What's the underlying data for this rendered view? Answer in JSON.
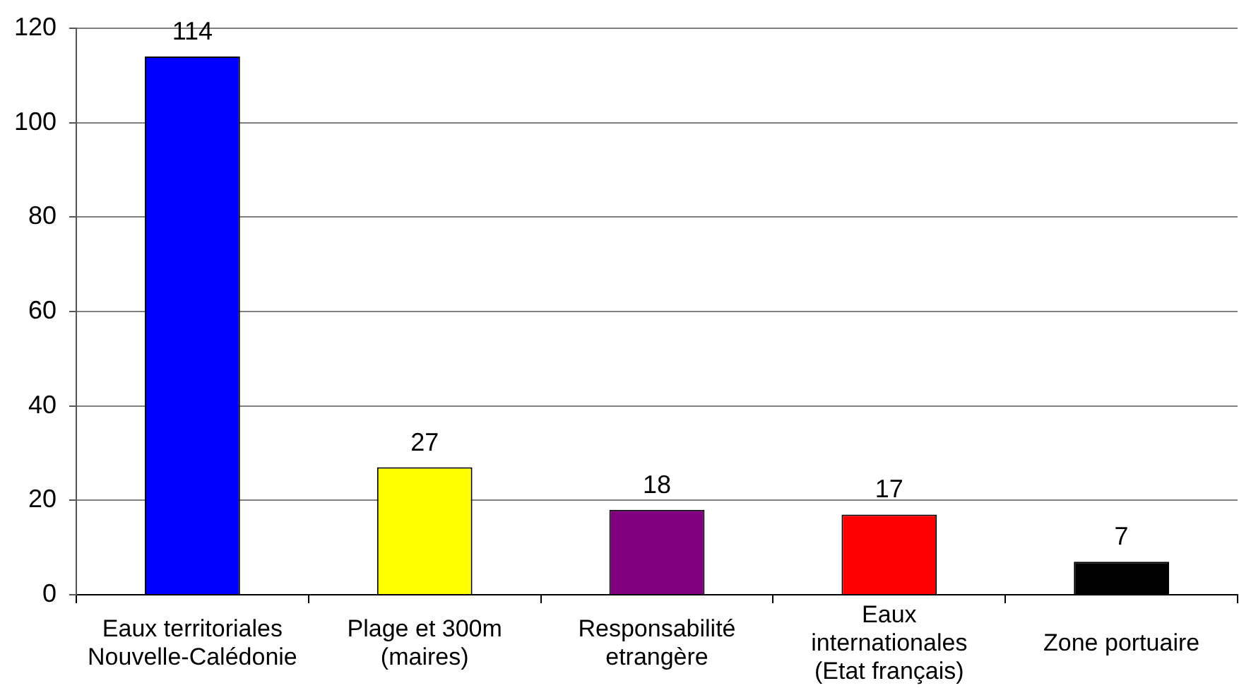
{
  "chart_data": {
    "type": "bar",
    "categories": [
      "Eaux territoriales\nNouvelle-Calédonie",
      "Plage et 300m\n(maires)",
      "Responsabilité\netrangère",
      "Eaux\ninternationales\n(Etat français)",
      "Zone portuaire"
    ],
    "values": [
      114,
      27,
      18,
      17,
      7
    ],
    "colors": [
      "#0000ff",
      "#ffff00",
      "#800080",
      "#ff0000",
      "#000000"
    ],
    "ylim": [
      0,
      120
    ],
    "yticks": [
      0,
      20,
      40,
      60,
      80,
      100,
      120
    ],
    "grid": "y",
    "data_labels": true
  }
}
